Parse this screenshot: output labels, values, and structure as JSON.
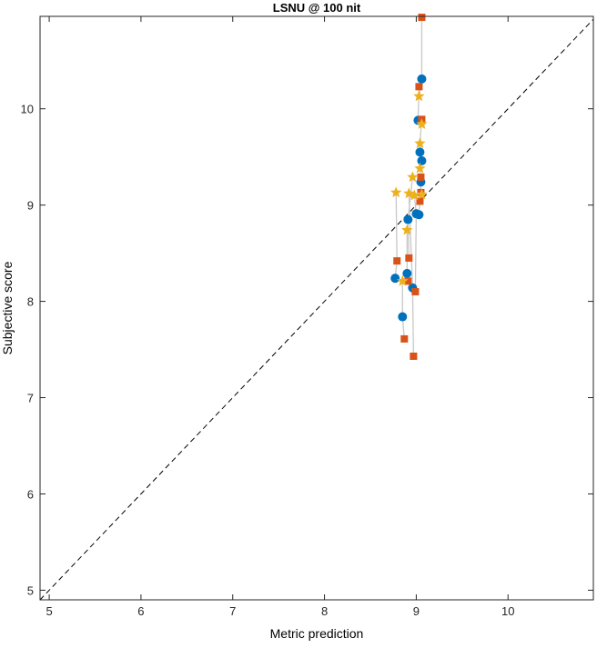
{
  "chart_data": {
    "type": "scatter",
    "title": "LSNU @ 100 nit",
    "xlabel": "Metric prediction",
    "ylabel": "Subjective score",
    "xlim": [
      4.9,
      10.93
    ],
    "ylim": [
      4.9,
      10.96
    ],
    "xticks": [
      5,
      6,
      7,
      8,
      9,
      10
    ],
    "yticks": [
      5,
      6,
      7,
      8,
      9,
      10
    ],
    "reference_line": "y = x (dashed)",
    "colors": {
      "circle": "#0072BD",
      "square": "#D95319",
      "star": "#EDB120",
      "connector": "#c8c8c8"
    },
    "series": [
      {
        "name": "circle",
        "marker": "circle",
        "x": [
          9.06,
          9.02,
          9.04,
          9.06,
          9.05,
          8.91,
          9.0,
          9.03,
          8.9,
          8.77,
          8.96,
          8.85
        ],
        "y": [
          10.31,
          9.88,
          9.55,
          9.46,
          9.24,
          8.85,
          8.91,
          8.9,
          8.29,
          8.24,
          8.14,
          7.84
        ]
      },
      {
        "name": "square",
        "marker": "square",
        "x": [
          9.06,
          9.03,
          9.06,
          9.05,
          9.05,
          9.04,
          8.79,
          8.92,
          8.91,
          8.99,
          8.87,
          8.97
        ],
        "y": [
          10.95,
          10.23,
          9.89,
          9.29,
          9.13,
          9.04,
          8.42,
          8.45,
          8.21,
          8.1,
          7.61,
          7.43
        ]
      },
      {
        "name": "star",
        "marker": "star",
        "x": [
          9.03,
          9.06,
          9.04,
          9.04,
          8.96,
          8.78,
          8.92,
          8.98,
          9.06,
          8.9,
          8.85
        ],
        "y": [
          10.13,
          9.84,
          9.64,
          9.38,
          9.29,
          9.13,
          9.12,
          9.1,
          9.11,
          8.74,
          8.21
        ]
      }
    ],
    "connections": [
      [
        0,
        0,
        0
      ],
      [
        1,
        1,
        1
      ],
      [
        2,
        2,
        2
      ],
      [
        3,
        3,
        3
      ],
      [
        4,
        4,
        8
      ],
      [
        5,
        7,
        4
      ],
      [
        6,
        9,
        7
      ],
      [
        7,
        5,
        8
      ],
      [
        8,
        8,
        9
      ],
      [
        9,
        6,
        5
      ],
      [
        10,
        11,
        6
      ],
      [
        11,
        10,
        10
      ]
    ]
  }
}
